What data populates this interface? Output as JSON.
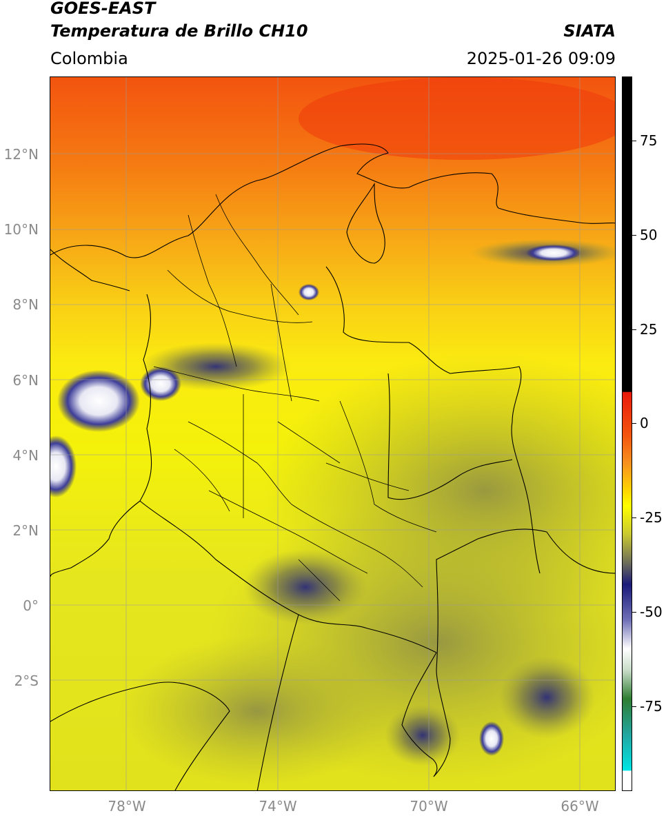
{
  "header": {
    "title_line1": "GOES-EAST",
    "title_line2": "Temperatura de Brillo CH10",
    "region": "Colombia",
    "agency": "SIATA",
    "datetime": "2025-01-26 09:09"
  },
  "map": {
    "lat_labels": [
      "12°N",
      "10°N",
      "8°N",
      "6°N",
      "4°N",
      "2°N",
      "0°",
      "2°S"
    ],
    "lon_labels": [
      "78°W",
      "74°W",
      "70°W",
      "66°W"
    ],
    "lon_range": [
      -80,
      -65
    ],
    "lat_range": [
      -5,
      14
    ],
    "gridlines": true
  },
  "colorbar": {
    "ticks": [
      "75",
      "50",
      "25",
      "0",
      "-25",
      "-50",
      "-75"
    ],
    "range": [
      -95,
      90
    ],
    "colors": {
      "warm": "#000000",
      "red": "#e8190a",
      "orange": "#f7901e",
      "yellow": "#ffff00",
      "olive": "#8b8b45",
      "navy": "#1a1a7a",
      "white": "#ffffff",
      "green": "#2e7d32",
      "cyan": "#00e5e5"
    }
  }
}
